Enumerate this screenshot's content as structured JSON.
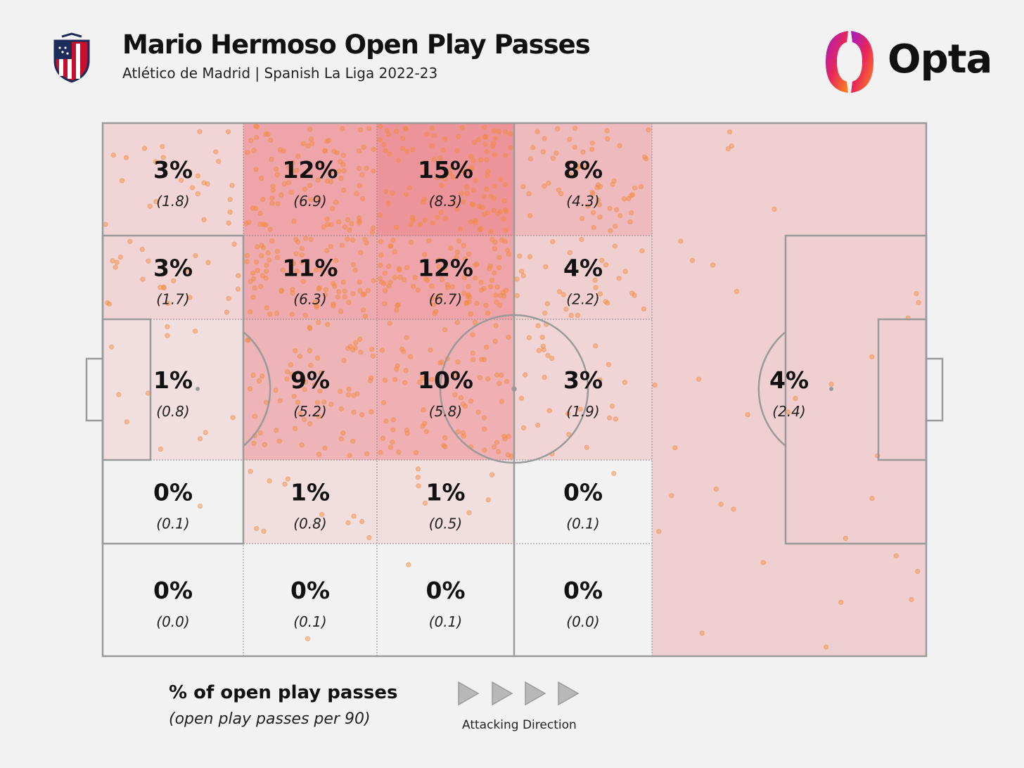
{
  "header": {
    "title": "Mario Hermoso Open Play Passes",
    "subtitle": "Atlético de Madrid | Spanish La Liga 2022-23",
    "brand": "Opta"
  },
  "legend": {
    "main": "% of open play passes",
    "sub": "(open play passes per 90)",
    "direction": "Attacking Direction"
  },
  "colors": {
    "background": "#f3f2f2",
    "zone_fill": "#e8505a",
    "dots": "#f28a3c",
    "lines": "#9a9a9a"
  },
  "chart_data": {
    "type": "heatmap",
    "title": "Mario Hermoso Open Play Passes",
    "attacking_direction": "left-to-right",
    "zones": [
      {
        "id": "r1c1",
        "pct": "3%",
        "rate": "(1.8)",
        "share": 3,
        "per90": 1.8
      },
      {
        "id": "r1c2",
        "pct": "12%",
        "rate": "(6.9)",
        "share": 12,
        "per90": 6.9
      },
      {
        "id": "r1c3",
        "pct": "15%",
        "rate": "(8.3)",
        "share": 15,
        "per90": 8.3
      },
      {
        "id": "r1c4",
        "pct": "8%",
        "rate": "(4.3)",
        "share": 8,
        "per90": 4.3
      },
      {
        "id": "r2c1",
        "pct": "3%",
        "rate": "(1.7)",
        "share": 3,
        "per90": 1.7
      },
      {
        "id": "r2c2",
        "pct": "11%",
        "rate": "(6.3)",
        "share": 11,
        "per90": 6.3
      },
      {
        "id": "r2c3",
        "pct": "12%",
        "rate": "(6.7)",
        "share": 12,
        "per90": 6.7
      },
      {
        "id": "r2c4",
        "pct": "4%",
        "rate": "(2.2)",
        "share": 4,
        "per90": 2.2
      },
      {
        "id": "r3c1",
        "pct": "1%",
        "rate": "(0.8)",
        "share": 1,
        "per90": 0.8
      },
      {
        "id": "r3c2",
        "pct": "9%",
        "rate": "(5.2)",
        "share": 9,
        "per90": 5.2
      },
      {
        "id": "r3c3",
        "pct": "10%",
        "rate": "(5.8)",
        "share": 10,
        "per90": 5.8
      },
      {
        "id": "r3c4",
        "pct": "3%",
        "rate": "(1.9)",
        "share": 3,
        "per90": 1.9
      },
      {
        "id": "r4c1",
        "pct": "0%",
        "rate": "(0.1)",
        "share": 0,
        "per90": 0.1
      },
      {
        "id": "r4c2",
        "pct": "1%",
        "rate": "(0.8)",
        "share": 1,
        "per90": 0.8
      },
      {
        "id": "r4c3",
        "pct": "1%",
        "rate": "(0.5)",
        "share": 1,
        "per90": 0.5
      },
      {
        "id": "r4c4",
        "pct": "0%",
        "rate": "(0.1)",
        "share": 0,
        "per90": 0.1
      },
      {
        "id": "r5c1",
        "pct": "0%",
        "rate": "(0.0)",
        "share": 0,
        "per90": 0.0
      },
      {
        "id": "r5c2",
        "pct": "0%",
        "rate": "(0.1)",
        "share": 0,
        "per90": 0.1
      },
      {
        "id": "r5c3",
        "pct": "0%",
        "rate": "(0.1)",
        "share": 0,
        "per90": 0.1
      },
      {
        "id": "r5c4",
        "pct": "0%",
        "rate": "(0.0)",
        "share": 0,
        "per90": 0.0
      },
      {
        "id": "final-third",
        "pct": "4%",
        "rate": "(2.4)",
        "share": 4,
        "per90": 2.4
      }
    ]
  }
}
